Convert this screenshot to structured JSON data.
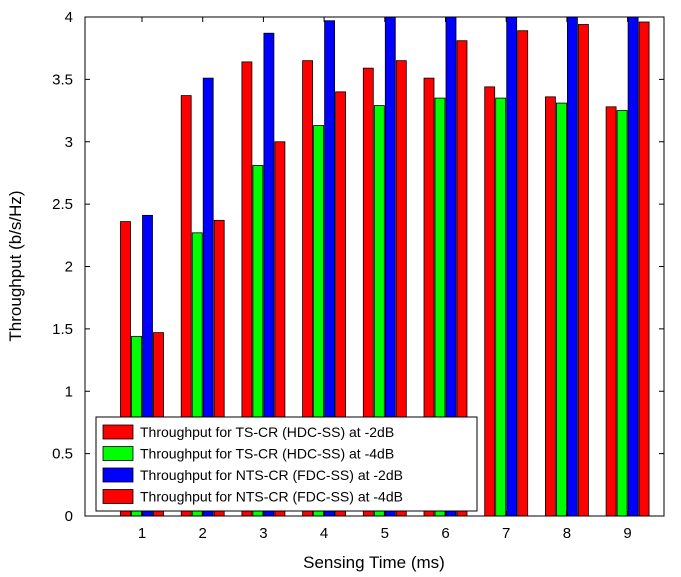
{
  "chart_data": {
    "type": "bar",
    "title": "",
    "xlabel": "Sensing Time (ms)",
    "ylabel": "Throughput (b/s/Hz)",
    "categories": [
      "1",
      "2",
      "3",
      "4",
      "5",
      "6",
      "7",
      "8",
      "9"
    ],
    "ylim": [
      0,
      4
    ],
    "yticks": [
      "0",
      "0.5",
      "1",
      "1.5",
      "2",
      "2.5",
      "3",
      "3.5",
      "4"
    ],
    "grid": false,
    "legend_position": "bottom-left",
    "series": [
      {
        "name": "Throughput for TS-CR (HDC-SS) at -2dB",
        "color": "#ff0000",
        "values": [
          2.36,
          3.37,
          3.64,
          3.65,
          3.59,
          3.51,
          3.44,
          3.36,
          3.28
        ]
      },
      {
        "name": "Throughput for TS-CR (HDC-SS) at -4dB",
        "color": "#00ff00",
        "values": [
          1.44,
          2.27,
          2.81,
          3.13,
          3.29,
          3.35,
          3.35,
          3.31,
          3.25
        ]
      },
      {
        "name": "Throughput for NTS-CR (FDC-SS) at -2dB",
        "color": "#0000ff",
        "values": [
          2.41,
          3.51,
          3.87,
          3.97,
          4.0,
          4.0,
          4.0,
          4.0,
          4.0
        ]
      },
      {
        "name": "Throughput for NTS-CR (FDC-SS) at -4dB",
        "color": "#ff0000",
        "values": [
          1.47,
          2.37,
          3.0,
          3.4,
          3.65,
          3.81,
          3.89,
          3.94,
          3.96
        ]
      }
    ]
  }
}
